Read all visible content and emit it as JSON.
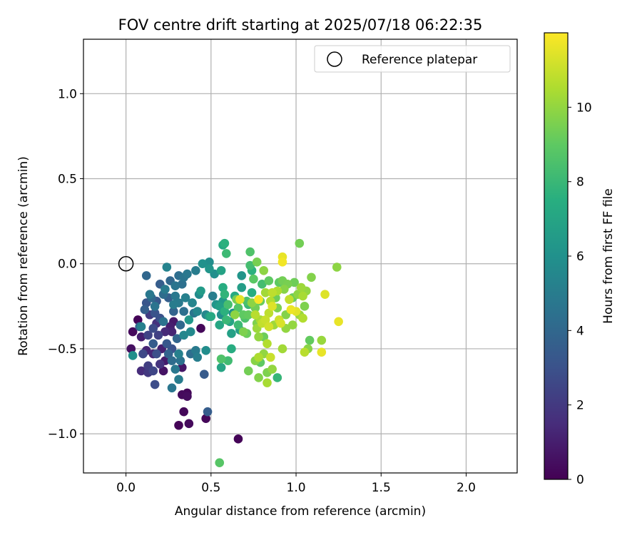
{
  "chart_data": {
    "type": "scatter",
    "title": "FOV centre drift starting at 2025/07/18 06:22:35",
    "xlabel": "Angular distance from reference (arcmin)",
    "ylabel": "Rotation from reference (arcmin)",
    "xlim": [
      -0.25,
      2.3
    ],
    "ylim": [
      -1.23,
      1.32
    ],
    "xticks": [
      0.0,
      0.5,
      1.0,
      1.5,
      2.0
    ],
    "xtick_labels": [
      "0.0",
      "0.5",
      "1.0",
      "1.5",
      "2.0"
    ],
    "yticks": [
      -1.0,
      -0.5,
      0.0,
      0.5,
      1.0
    ],
    "ytick_labels": [
      "−1.0",
      "−0.5",
      "0.0",
      "0.5",
      "1.0"
    ],
    "grid": true,
    "legend": {
      "placement": "top-right",
      "entries": [
        "Reference platepar"
      ]
    },
    "reference_point": {
      "x": 0.0,
      "y": 0.0,
      "label": "Reference platepar"
    },
    "colorbar": {
      "label": "Hours from first FF file",
      "range": [
        0,
        12
      ],
      "ticks": [
        0,
        2,
        4,
        6,
        8,
        10
      ],
      "colormap": "viridis"
    },
    "points": [
      {
        "x": 0.07,
        "y": -0.33,
        "h": 0.1
      },
      {
        "x": 0.04,
        "y": -0.4,
        "h": 0.3
      },
      {
        "x": 0.03,
        "y": -0.5,
        "h": 0.5
      },
      {
        "x": 0.09,
        "y": -0.43,
        "h": 1.0
      },
      {
        "x": 0.12,
        "y": -0.51,
        "h": 1.2
      },
      {
        "x": 0.09,
        "y": -0.63,
        "h": 1.5
      },
      {
        "x": 0.13,
        "y": -0.64,
        "h": 2.0
      },
      {
        "x": 0.16,
        "y": -0.53,
        "h": 1.3
      },
      {
        "x": 0.16,
        "y": -0.63,
        "h": 2.5
      },
      {
        "x": 0.17,
        "y": -0.71,
        "h": 2.8
      },
      {
        "x": 0.2,
        "y": -0.59,
        "h": 1.8
      },
      {
        "x": 0.22,
        "y": -0.63,
        "h": 0.6
      },
      {
        "x": 0.23,
        "y": -0.57,
        "h": 0.9
      },
      {
        "x": 0.21,
        "y": -0.5,
        "h": 1.1
      },
      {
        "x": 0.23,
        "y": -0.4,
        "h": 1.4
      },
      {
        "x": 0.18,
        "y": -0.35,
        "h": 1.7
      },
      {
        "x": 0.14,
        "y": -0.3,
        "h": 2.1
      },
      {
        "x": 0.12,
        "y": -0.23,
        "h": 3.2
      },
      {
        "x": 0.15,
        "y": -0.2,
        "h": 4.1
      },
      {
        "x": 0.17,
        "y": -0.25,
        "h": 4.6
      },
      {
        "x": 0.2,
        "y": -0.32,
        "h": 3.0
      },
      {
        "x": 0.19,
        "y": -0.42,
        "h": 2.3
      },
      {
        "x": 0.26,
        "y": -0.37,
        "h": 1.0
      },
      {
        "x": 0.28,
        "y": -0.34,
        "h": 0.8
      },
      {
        "x": 0.27,
        "y": -0.4,
        "h": 1.2
      },
      {
        "x": 0.27,
        "y": -0.5,
        "h": 3.0
      },
      {
        "x": 0.27,
        "y": -0.57,
        "h": 4.2
      },
      {
        "x": 0.29,
        "y": -0.62,
        "h": 4.8
      },
      {
        "x": 0.27,
        "y": -0.73,
        "h": 4.7
      },
      {
        "x": 0.31,
        "y": -0.68,
        "h": 5.0
      },
      {
        "x": 0.33,
        "y": -0.61,
        "h": 0.7
      },
      {
        "x": 0.31,
        "y": -0.53,
        "h": 5.2
      },
      {
        "x": 0.32,
        "y": -0.57,
        "h": 4.5
      },
      {
        "x": 0.33,
        "y": -0.77,
        "h": 0.3
      },
      {
        "x": 0.36,
        "y": -0.76,
        "h": 0.2
      },
      {
        "x": 0.36,
        "y": -0.78,
        "h": 0.4
      },
      {
        "x": 0.34,
        "y": -0.87,
        "h": 0.2
      },
      {
        "x": 0.31,
        "y": -0.95,
        "h": 0.1
      },
      {
        "x": 0.37,
        "y": -0.94,
        "h": 0.3
      },
      {
        "x": 0.47,
        "y": -0.91,
        "h": 0.2
      },
      {
        "x": 0.48,
        "y": -0.87,
        "h": 3.5
      },
      {
        "x": 0.66,
        "y": -1.03,
        "h": 0.1
      },
      {
        "x": 0.55,
        "y": -1.17,
        "h": 8.8
      },
      {
        "x": 0.44,
        "y": -0.38,
        "h": 0.2
      },
      {
        "x": 0.46,
        "y": -0.65,
        "h": 3.4
      },
      {
        "x": 0.47,
        "y": -0.51,
        "h": 5.8
      },
      {
        "x": 0.41,
        "y": -0.51,
        "h": 4.9
      },
      {
        "x": 0.42,
        "y": -0.55,
        "h": 5.1
      },
      {
        "x": 0.38,
        "y": -0.53,
        "h": 4.3
      },
      {
        "x": 0.34,
        "y": -0.42,
        "h": 5.5
      },
      {
        "x": 0.38,
        "y": -0.4,
        "h": 5.6
      },
      {
        "x": 0.37,
        "y": -0.33,
        "h": 6.3
      },
      {
        "x": 0.34,
        "y": -0.28,
        "h": 4.4
      },
      {
        "x": 0.32,
        "y": -0.36,
        "h": 4.0
      },
      {
        "x": 0.28,
        "y": -0.28,
        "h": 3.8
      },
      {
        "x": 0.25,
        "y": -0.2,
        "h": 3.6
      },
      {
        "x": 0.22,
        "y": -0.18,
        "h": 4.2
      },
      {
        "x": 0.23,
        "y": -0.15,
        "h": 4.9
      },
      {
        "x": 0.24,
        "y": -0.02,
        "h": 5.3
      },
      {
        "x": 0.29,
        "y": -0.19,
        "h": 4.8
      },
      {
        "x": 0.28,
        "y": -0.24,
        "h": 5.0
      },
      {
        "x": 0.12,
        "y": -0.07,
        "h": 4.0
      },
      {
        "x": 0.09,
        "y": -0.37,
        "h": 5.2
      },
      {
        "x": 0.04,
        "y": -0.54,
        "h": 5.9
      },
      {
        "x": 0.33,
        "y": -0.12,
        "h": 4.4
      },
      {
        "x": 0.34,
        "y": -0.08,
        "h": 4.6
      },
      {
        "x": 0.36,
        "y": -0.06,
        "h": 4.8
      },
      {
        "x": 0.41,
        "y": -0.04,
        "h": 5.0
      },
      {
        "x": 0.42,
        "y": -0.28,
        "h": 5.5
      },
      {
        "x": 0.44,
        "y": -0.16,
        "h": 6.5
      },
      {
        "x": 0.45,
        "y": 0.0,
        "h": 6.0
      },
      {
        "x": 0.49,
        "y": 0.01,
        "h": 5.8
      },
      {
        "x": 0.49,
        "y": -0.03,
        "h": 6.2
      },
      {
        "x": 0.47,
        "y": -0.3,
        "h": 5.5
      },
      {
        "x": 0.5,
        "y": -0.31,
        "h": 7.2
      },
      {
        "x": 0.52,
        "y": -0.06,
        "h": 5.9
      },
      {
        "x": 0.51,
        "y": -0.19,
        "h": 5.1
      },
      {
        "x": 0.53,
        "y": -0.24,
        "h": 6.2
      },
      {
        "x": 0.55,
        "y": -0.25,
        "h": 6.7
      },
      {
        "x": 0.56,
        "y": -0.04,
        "h": 6.9
      },
      {
        "x": 0.57,
        "y": -0.14,
        "h": 7.4
      },
      {
        "x": 0.58,
        "y": -0.18,
        "h": 7.8
      },
      {
        "x": 0.57,
        "y": -0.22,
        "h": 6.4
      },
      {
        "x": 0.56,
        "y": -0.3,
        "h": 5.9
      },
      {
        "x": 0.55,
        "y": -0.36,
        "h": 7.1
      },
      {
        "x": 0.58,
        "y": -0.28,
        "h": 7.6
      },
      {
        "x": 0.59,
        "y": -0.33,
        "h": 8.0
      },
      {
        "x": 0.6,
        "y": -0.24,
        "h": 8.4
      },
      {
        "x": 0.61,
        "y": -0.34,
        "h": 7.0
      },
      {
        "x": 0.62,
        "y": -0.41,
        "h": 6.8
      },
      {
        "x": 0.63,
        "y": -0.29,
        "h": 6.0
      },
      {
        "x": 0.64,
        "y": -0.19,
        "h": 7.3
      },
      {
        "x": 0.65,
        "y": -0.21,
        "h": 9.5
      },
      {
        "x": 0.66,
        "y": -0.36,
        "h": 8.1
      },
      {
        "x": 0.67,
        "y": -0.39,
        "h": 6.6
      },
      {
        "x": 0.67,
        "y": -0.21,
        "h": 11.5
      },
      {
        "x": 0.68,
        "y": -0.07,
        "h": 6.2
      },
      {
        "x": 0.68,
        "y": -0.14,
        "h": 6.6
      },
      {
        "x": 0.69,
        "y": -0.3,
        "h": 9.0
      },
      {
        "x": 0.7,
        "y": -0.32,
        "h": 8.5
      },
      {
        "x": 0.71,
        "y": -0.41,
        "h": 9.2
      },
      {
        "x": 0.72,
        "y": -0.24,
        "h": 8.0
      },
      {
        "x": 0.73,
        "y": -0.01,
        "h": 8.3
      },
      {
        "x": 0.73,
        "y": 0.07,
        "h": 8.6
      },
      {
        "x": 0.74,
        "y": -0.04,
        "h": 7.6
      },
      {
        "x": 0.75,
        "y": -0.09,
        "h": 8.9
      },
      {
        "x": 0.74,
        "y": -0.17,
        "h": 7.4
      },
      {
        "x": 0.76,
        "y": -0.26,
        "h": 9.4
      },
      {
        "x": 0.77,
        "y": -0.35,
        "h": 9.6
      },
      {
        "x": 0.77,
        "y": -0.38,
        "h": 10.2
      },
      {
        "x": 0.78,
        "y": -0.43,
        "h": 10.0
      },
      {
        "x": 0.79,
        "y": -0.33,
        "h": 10.4
      },
      {
        "x": 0.78,
        "y": -0.55,
        "h": 10.5
      },
      {
        "x": 0.76,
        "y": -0.57,
        "h": 9.8
      },
      {
        "x": 0.79,
        "y": -0.58,
        "h": 9.0
      },
      {
        "x": 0.81,
        "y": -0.53,
        "h": 10.0
      },
      {
        "x": 0.81,
        "y": -0.43,
        "h": 9.3
      },
      {
        "x": 0.83,
        "y": -0.47,
        "h": 10.6
      },
      {
        "x": 0.82,
        "y": -0.33,
        "h": 11.0
      },
      {
        "x": 0.84,
        "y": -0.37,
        "h": 11.2
      },
      {
        "x": 0.84,
        "y": -0.29,
        "h": 10.8
      },
      {
        "x": 0.85,
        "y": -0.22,
        "h": 10.6
      },
      {
        "x": 0.86,
        "y": -0.25,
        "h": 11.4
      },
      {
        "x": 0.87,
        "y": -0.36,
        "h": 10.2
      },
      {
        "x": 0.85,
        "y": -0.55,
        "h": 11.0
      },
      {
        "x": 0.83,
        "y": -0.64,
        "h": 9.6
      },
      {
        "x": 0.86,
        "y": -0.62,
        "h": 10.0
      },
      {
        "x": 0.83,
        "y": -0.7,
        "h": 10.4
      },
      {
        "x": 0.78,
        "y": -0.67,
        "h": 9.7
      },
      {
        "x": 0.72,
        "y": -0.63,
        "h": 9.4
      },
      {
        "x": 0.89,
        "y": -0.67,
        "h": 7.9
      },
      {
        "x": 0.81,
        "y": -0.04,
        "h": 9.9
      },
      {
        "x": 0.8,
        "y": -0.12,
        "h": 8.3
      },
      {
        "x": 0.82,
        "y": -0.17,
        "h": 10.3
      },
      {
        "x": 0.84,
        "y": -0.1,
        "h": 9.0
      },
      {
        "x": 0.79,
        "y": -0.22,
        "h": 9.2
      },
      {
        "x": 0.77,
        "y": 0.01,
        "h": 9.5
      },
      {
        "x": 0.86,
        "y": -0.17,
        "h": 10.8
      },
      {
        "x": 0.88,
        "y": -0.2,
        "h": 9.3
      },
      {
        "x": 0.89,
        "y": -0.26,
        "h": 9.6
      },
      {
        "x": 0.9,
        "y": -0.11,
        "h": 9.0
      },
      {
        "x": 0.89,
        "y": -0.16,
        "h": 10.5
      },
      {
        "x": 0.92,
        "y": 0.04,
        "h": 11.6
      },
      {
        "x": 0.92,
        "y": 0.01,
        "h": 11.8
      },
      {
        "x": 0.92,
        "y": -0.1,
        "h": 9.4
      },
      {
        "x": 0.93,
        "y": -0.15,
        "h": 9.8
      },
      {
        "x": 0.9,
        "y": -0.33,
        "h": 11.1
      },
      {
        "x": 0.91,
        "y": -0.35,
        "h": 11.3
      },
      {
        "x": 0.92,
        "y": -0.5,
        "h": 10.3
      },
      {
        "x": 0.94,
        "y": -0.38,
        "h": 10.0
      },
      {
        "x": 0.94,
        "y": -0.3,
        "h": 9.7
      },
      {
        "x": 0.95,
        "y": -0.12,
        "h": 9.5
      },
      {
        "x": 0.96,
        "y": -0.21,
        "h": 10.9
      },
      {
        "x": 0.97,
        "y": -0.27,
        "h": 11.7
      },
      {
        "x": 0.98,
        "y": -0.36,
        "h": 10.0
      },
      {
        "x": 0.98,
        "y": -0.2,
        "h": 9.2
      },
      {
        "x": 0.99,
        "y": -0.11,
        "h": 9.3
      },
      {
        "x": 1.0,
        "y": -0.28,
        "h": 11.5
      },
      {
        "x": 1.01,
        "y": -0.18,
        "h": 9.9
      },
      {
        "x": 1.02,
        "y": -0.3,
        "h": 10.1
      },
      {
        "x": 1.02,
        "y": 0.12,
        "h": 9.4
      },
      {
        "x": 1.03,
        "y": -0.14,
        "h": 10.2
      },
      {
        "x": 1.04,
        "y": -0.19,
        "h": 10.4
      },
      {
        "x": 1.04,
        "y": -0.32,
        "h": 10.6
      },
      {
        "x": 1.05,
        "y": -0.25,
        "h": 9.6
      },
      {
        "x": 1.05,
        "y": -0.52,
        "h": 10.7
      },
      {
        "x": 1.06,
        "y": -0.16,
        "h": 10.0
      },
      {
        "x": 1.07,
        "y": -0.5,
        "h": 9.8
      },
      {
        "x": 1.08,
        "y": -0.45,
        "h": 9.1
      },
      {
        "x": 1.09,
        "y": -0.08,
        "h": 9.7
      },
      {
        "x": 1.15,
        "y": -0.45,
        "h": 10.1
      },
      {
        "x": 1.15,
        "y": -0.52,
        "h": 11.6
      },
      {
        "x": 1.17,
        "y": -0.18,
        "h": 11.4
      },
      {
        "x": 1.24,
        "y": -0.02,
        "h": 9.9
      },
      {
        "x": 1.25,
        "y": -0.34,
        "h": 11.6
      },
      {
        "x": 0.58,
        "y": 0.12,
        "h": 7.6
      },
      {
        "x": 0.57,
        "y": 0.11,
        "h": 7.2
      },
      {
        "x": 0.59,
        "y": 0.06,
        "h": 8.1
      },
      {
        "x": 0.56,
        "y": -0.56,
        "h": 8.6
      },
      {
        "x": 0.56,
        "y": -0.61,
        "h": 7.0
      },
      {
        "x": 0.6,
        "y": -0.57,
        "h": 8.2
      },
      {
        "x": 0.62,
        "y": -0.5,
        "h": 7.4
      },
      {
        "x": 0.64,
        "y": -0.3,
        "h": 9.9
      },
      {
        "x": 0.66,
        "y": -0.26,
        "h": 8.7
      },
      {
        "x": 0.69,
        "y": -0.4,
        "h": 9.6
      },
      {
        "x": 0.71,
        "y": -0.22,
        "h": 8.5
      },
      {
        "x": 0.72,
        "y": -0.3,
        "h": 9.1
      },
      {
        "x": 0.74,
        "y": -0.23,
        "h": 9.9
      },
      {
        "x": 0.76,
        "y": -0.3,
        "h": 10.7
      },
      {
        "x": 0.78,
        "y": -0.21,
        "h": 11.9
      },
      {
        "x": 0.8,
        "y": -0.35,
        "h": 10.9
      },
      {
        "x": 0.49,
        "y": -0.31,
        "h": 6.6
      },
      {
        "x": 0.43,
        "y": -0.18,
        "h": 5.7
      },
      {
        "x": 0.39,
        "y": -0.23,
        "h": 5.4
      },
      {
        "x": 0.4,
        "y": -0.29,
        "h": 4.7
      },
      {
        "x": 0.35,
        "y": -0.2,
        "h": 5.2
      },
      {
        "x": 0.31,
        "y": -0.23,
        "h": 4.9
      },
      {
        "x": 0.29,
        "y": -0.13,
        "h": 4.6
      },
      {
        "x": 0.31,
        "y": -0.07,
        "h": 4.3
      },
      {
        "x": 0.26,
        "y": -0.1,
        "h": 4.0
      },
      {
        "x": 0.2,
        "y": -0.12,
        "h": 3.5
      },
      {
        "x": 0.18,
        "y": -0.22,
        "h": 3.3
      },
      {
        "x": 0.17,
        "y": -0.29,
        "h": 3.1
      },
      {
        "x": 0.16,
        "y": -0.38,
        "h": 2.7
      },
      {
        "x": 0.13,
        "y": -0.42,
        "h": 2.4
      },
      {
        "x": 0.11,
        "y": -0.27,
        "h": 3.6
      },
      {
        "x": 0.08,
        "y": -0.37,
        "h": 3.9
      },
      {
        "x": 0.13,
        "y": -0.6,
        "h": 2.2
      },
      {
        "x": 0.18,
        "y": -0.53,
        "h": 2.9
      },
      {
        "x": 0.24,
        "y": -0.47,
        "h": 3.3
      },
      {
        "x": 0.25,
        "y": -0.53,
        "h": 3.8
      },
      {
        "x": 0.3,
        "y": -0.44,
        "h": 3.9
      },
      {
        "x": 0.22,
        "y": -0.34,
        "h": 4.5
      },
      {
        "x": 0.14,
        "y": -0.18,
        "h": 4.8
      },
      {
        "x": 0.16,
        "y": -0.47,
        "h": 3.5
      },
      {
        "x": 0.1,
        "y": -0.53,
        "h": 2.6
      }
    ]
  }
}
